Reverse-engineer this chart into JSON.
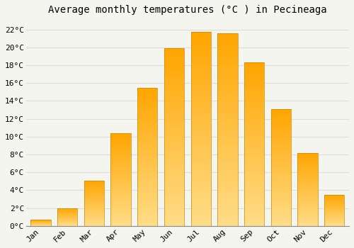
{
  "title": "Average monthly temperatures (°C ) in Pecineaga",
  "months": [
    "Jan",
    "Feb",
    "Mar",
    "Apr",
    "May",
    "Jun",
    "Jul",
    "Aug",
    "Sep",
    "Oct",
    "Nov",
    "Dec"
  ],
  "temperatures": [
    0.7,
    2.0,
    5.1,
    10.4,
    15.5,
    19.9,
    21.7,
    21.6,
    18.3,
    13.1,
    8.2,
    3.5
  ],
  "bar_color_bottom": "#FFDD88",
  "bar_color_top": "#FFA500",
  "bar_edge_color": "#CC8800",
  "background_color": "#F5F5F0",
  "plot_bg_color": "#F5F5F0",
  "grid_color": "#DDDDDD",
  "ylim": [
    0,
    23
  ],
  "yticks": [
    0,
    2,
    4,
    6,
    8,
    10,
    12,
    14,
    16,
    18,
    20,
    22
  ],
  "title_fontsize": 10,
  "tick_fontsize": 8,
  "font_family": "monospace"
}
